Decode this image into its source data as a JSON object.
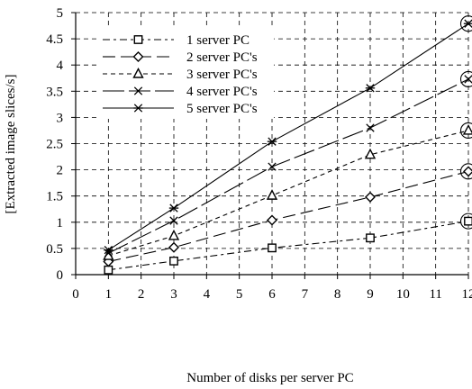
{
  "chart_data": {
    "type": "line",
    "title": "",
    "xlabel": "Number of disks per server PC",
    "ylabel": "[Extracted image slices/s]",
    "xlim": [
      0,
      12
    ],
    "ylim": [
      0,
      5
    ],
    "x_ticks": [
      0,
      1,
      2,
      3,
      4,
      5,
      6,
      7,
      8,
      9,
      10,
      11,
      12
    ],
    "x_tick_labels": [
      "0",
      "1",
      "2",
      "3",
      "4",
      "5",
      "6",
      "7",
      "8",
      "9",
      "10",
      "11",
      "12"
    ],
    "y_ticks": [
      0,
      0.5,
      1,
      1.5,
      2,
      2.5,
      3,
      3.5,
      4,
      4.5,
      5
    ],
    "y_tick_labels": [
      "0",
      "0.5",
      "1",
      "1.5",
      "2",
      "2.5",
      "3",
      "3.5",
      "4",
      "4.5",
      "5"
    ],
    "grid": true,
    "legend_position": "top-left",
    "x": [
      1,
      3,
      6,
      9,
      12
    ],
    "series": [
      {
        "name": "1 server PC",
        "marker": "square",
        "dash": "8,4,3,4",
        "values": [
          0.09,
          0.26,
          0.51,
          0.7,
          1.02
        ]
      },
      {
        "name": "2 server PC's",
        "marker": "diamond",
        "dash": "14,6",
        "values": [
          0.25,
          0.52,
          1.04,
          1.48,
          1.97
        ]
      },
      {
        "name": "3 server PC's",
        "marker": "triangle",
        "dash": "5,4",
        "values": [
          0.36,
          0.74,
          1.51,
          2.29,
          2.75
        ]
      },
      {
        "name": "4 server PC's",
        "marker": "x",
        "dash": "24,5",
        "values": [
          0.41,
          1.03,
          2.06,
          2.8,
          3.73
        ]
      },
      {
        "name": "5 server PC's",
        "marker": "asterisk",
        "dash": "",
        "values": [
          0.47,
          1.27,
          2.54,
          3.56,
          4.79
        ]
      }
    ],
    "annotations": "circled markers at x = 12"
  }
}
